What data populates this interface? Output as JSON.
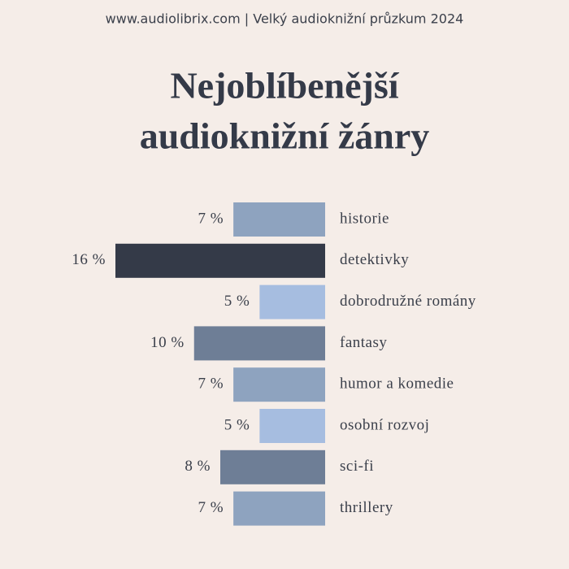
{
  "chart_data": {
    "type": "bar",
    "subtitle": "www.audiolibrix.com | Velký audioknižní průzkum 2024",
    "title": [
      "Nejoblíbenější",
      "audioknižní žánry"
    ],
    "categories": [
      "historie",
      "detektivky",
      "dobrodružné romány",
      "fantasy",
      "humor a komedie",
      "osobní rozvoj",
      "sci-fi",
      "thrillery"
    ],
    "values": [
      7,
      16,
      5,
      10,
      7,
      5,
      8,
      7
    ],
    "value_labels": [
      "7 %",
      "16 %",
      "5 %",
      "10 %",
      "7 %",
      "5 %",
      "8 %",
      "7 %"
    ],
    "colors": [
      "#8ea3bf",
      "#343a48",
      "#a6bde0",
      "#6e7e96",
      "#8ea3bf",
      "#a6bde0",
      "#6e7e96",
      "#8ea3bf"
    ]
  }
}
